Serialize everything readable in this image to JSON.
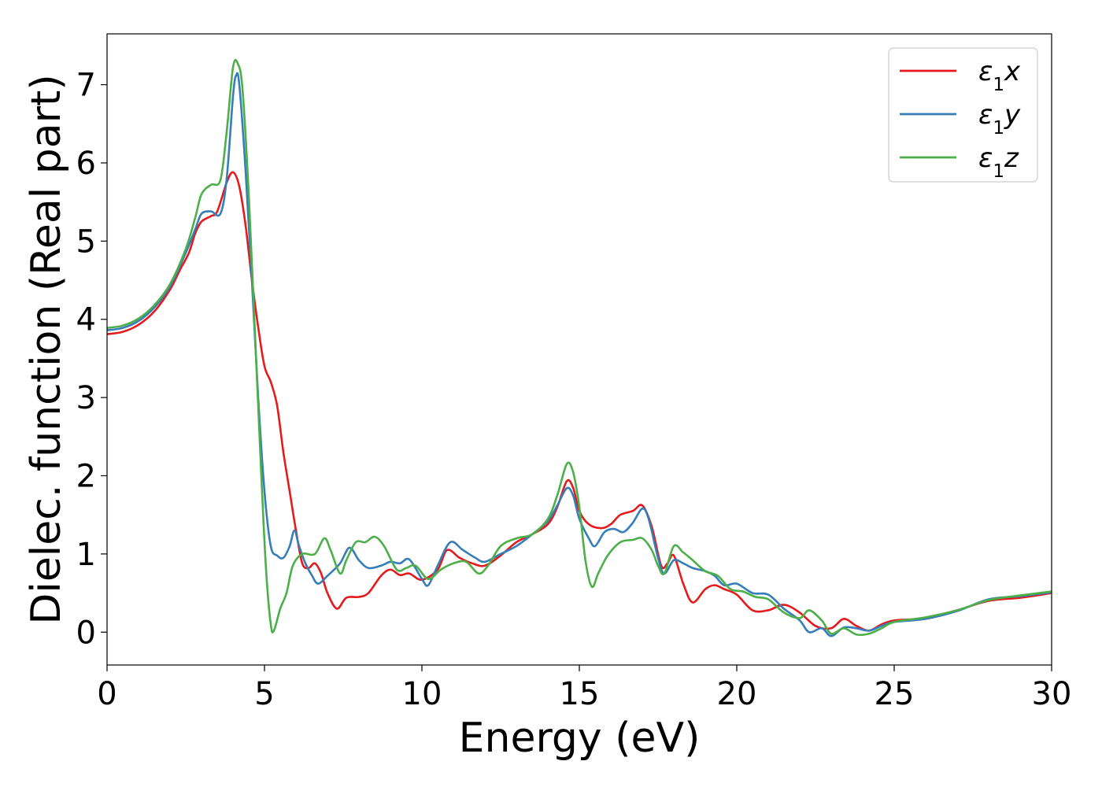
{
  "colors": {
    "background": "#ffffff",
    "axis": "#000000",
    "legend_border": "#cccccc"
  },
  "chart_data": {
    "type": "line",
    "title": "",
    "xlabel": "Energy (eV)",
    "ylabel": "Dielec. function (Real part)",
    "xlim": [
      0,
      30
    ],
    "ylim": [
      -0.42,
      7.65
    ],
    "x_ticks": [
      0,
      5,
      10,
      15,
      20,
      25,
      30
    ],
    "y_ticks": [
      0,
      1,
      2,
      3,
      4,
      5,
      6,
      7
    ],
    "grid": false,
    "legend": {
      "position": "top-right",
      "entries": [
        {
          "base": "ε",
          "sub": "1",
          "suffix": "x",
          "color": "#e41a1c"
        },
        {
          "base": "ε",
          "sub": "1",
          "suffix": "y",
          "color": "#377eb8"
        },
        {
          "base": "ε",
          "sub": "1",
          "suffix": "z",
          "color": "#4daf4a"
        }
      ]
    },
    "series": [
      {
        "name": "ε1x",
        "color": "#e41a1c",
        "points": [
          [
            0,
            3.81
          ],
          [
            0.5,
            3.84
          ],
          [
            1.0,
            3.93
          ],
          [
            1.5,
            4.1
          ],
          [
            2.0,
            4.38
          ],
          [
            2.3,
            4.62
          ],
          [
            2.6,
            4.85
          ],
          [
            2.8,
            5.1
          ],
          [
            3.0,
            5.25
          ],
          [
            3.3,
            5.32
          ],
          [
            3.5,
            5.38
          ],
          [
            3.8,
            5.75
          ],
          [
            4.0,
            5.88
          ],
          [
            4.2,
            5.7
          ],
          [
            4.4,
            5.2
          ],
          [
            4.6,
            4.5
          ],
          [
            4.8,
            3.9
          ],
          [
            5.0,
            3.4
          ],
          [
            5.2,
            3.2
          ],
          [
            5.4,
            2.9
          ],
          [
            5.6,
            2.3
          ],
          [
            5.8,
            1.8
          ],
          [
            6.0,
            1.3
          ],
          [
            6.2,
            0.88
          ],
          [
            6.4,
            0.82
          ],
          [
            6.6,
            0.88
          ],
          [
            6.8,
            0.75
          ],
          [
            7.0,
            0.5
          ],
          [
            7.3,
            0.3
          ],
          [
            7.6,
            0.44
          ],
          [
            8.0,
            0.45
          ],
          [
            8.3,
            0.5
          ],
          [
            8.7,
            0.72
          ],
          [
            9.0,
            0.8
          ],
          [
            9.3,
            0.73
          ],
          [
            9.6,
            0.75
          ],
          [
            10.0,
            0.67
          ],
          [
            10.5,
            0.8
          ],
          [
            10.8,
            1.05
          ],
          [
            11.2,
            0.95
          ],
          [
            11.6,
            0.88
          ],
          [
            12.0,
            0.85
          ],
          [
            12.5,
            0.98
          ],
          [
            13.0,
            1.15
          ],
          [
            13.5,
            1.25
          ],
          [
            14.0,
            1.38
          ],
          [
            14.3,
            1.6
          ],
          [
            14.6,
            1.93
          ],
          [
            14.8,
            1.85
          ],
          [
            15.0,
            1.55
          ],
          [
            15.3,
            1.38
          ],
          [
            15.7,
            1.33
          ],
          [
            16.0,
            1.38
          ],
          [
            16.3,
            1.5
          ],
          [
            16.7,
            1.55
          ],
          [
            17.0,
            1.62
          ],
          [
            17.3,
            1.35
          ],
          [
            17.6,
            0.85
          ],
          [
            17.8,
            0.88
          ],
          [
            18.0,
            0.98
          ],
          [
            18.3,
            0.62
          ],
          [
            18.6,
            0.38
          ],
          [
            19.0,
            0.55
          ],
          [
            19.3,
            0.6
          ],
          [
            19.6,
            0.55
          ],
          [
            20.0,
            0.48
          ],
          [
            20.5,
            0.28
          ],
          [
            21.0,
            0.28
          ],
          [
            21.5,
            0.35
          ],
          [
            22.0,
            0.25
          ],
          [
            22.5,
            0.08
          ],
          [
            23.0,
            0.05
          ],
          [
            23.4,
            0.17
          ],
          [
            23.8,
            0.08
          ],
          [
            24.2,
            0.02
          ],
          [
            24.6,
            0.1
          ],
          [
            25.0,
            0.15
          ],
          [
            26.0,
            0.18
          ],
          [
            27.0,
            0.28
          ],
          [
            28.0,
            0.4
          ],
          [
            29.0,
            0.44
          ],
          [
            30.0,
            0.5
          ]
        ]
      },
      {
        "name": "ε1y",
        "color": "#377eb8",
        "points": [
          [
            0,
            3.86
          ],
          [
            0.5,
            3.89
          ],
          [
            1.0,
            3.98
          ],
          [
            1.5,
            4.15
          ],
          [
            2.0,
            4.42
          ],
          [
            2.5,
            4.85
          ],
          [
            2.8,
            5.15
          ],
          [
            3.0,
            5.35
          ],
          [
            3.3,
            5.38
          ],
          [
            3.6,
            5.35
          ],
          [
            3.8,
            5.8
          ],
          [
            4.0,
            6.85
          ],
          [
            4.1,
            7.12
          ],
          [
            4.2,
            7.0
          ],
          [
            4.4,
            5.9
          ],
          [
            4.6,
            4.5
          ],
          [
            4.8,
            3.0
          ],
          [
            5.0,
            1.8
          ],
          [
            5.2,
            1.1
          ],
          [
            5.4,
            0.98
          ],
          [
            5.6,
            0.95
          ],
          [
            5.8,
            1.1
          ],
          [
            5.95,
            1.3
          ],
          [
            6.1,
            1.1
          ],
          [
            6.3,
            0.88
          ],
          [
            6.5,
            0.73
          ],
          [
            6.7,
            0.62
          ],
          [
            7.0,
            0.72
          ],
          [
            7.4,
            0.88
          ],
          [
            7.7,
            1.08
          ],
          [
            8.0,
            0.92
          ],
          [
            8.3,
            0.82
          ],
          [
            8.7,
            0.85
          ],
          [
            9.0,
            0.9
          ],
          [
            9.3,
            0.88
          ],
          [
            9.6,
            0.93
          ],
          [
            10.0,
            0.68
          ],
          [
            10.2,
            0.6
          ],
          [
            10.5,
            0.85
          ],
          [
            10.9,
            1.15
          ],
          [
            11.3,
            1.05
          ],
          [
            11.7,
            0.95
          ],
          [
            12.0,
            0.9
          ],
          [
            12.5,
            1.0
          ],
          [
            13.0,
            1.1
          ],
          [
            13.5,
            1.25
          ],
          [
            14.0,
            1.42
          ],
          [
            14.3,
            1.62
          ],
          [
            14.6,
            1.84
          ],
          [
            14.8,
            1.75
          ],
          [
            15.0,
            1.45
          ],
          [
            15.3,
            1.2
          ],
          [
            15.5,
            1.1
          ],
          [
            15.8,
            1.28
          ],
          [
            16.1,
            1.32
          ],
          [
            16.4,
            1.28
          ],
          [
            16.7,
            1.4
          ],
          [
            17.0,
            1.58
          ],
          [
            17.2,
            1.45
          ],
          [
            17.5,
            0.95
          ],
          [
            17.7,
            0.75
          ],
          [
            18.0,
            0.92
          ],
          [
            18.3,
            0.88
          ],
          [
            18.6,
            0.82
          ],
          [
            19.0,
            0.78
          ],
          [
            19.3,
            0.72
          ],
          [
            19.6,
            0.6
          ],
          [
            20.0,
            0.62
          ],
          [
            20.5,
            0.5
          ],
          [
            21.0,
            0.48
          ],
          [
            21.5,
            0.3
          ],
          [
            22.0,
            0.15
          ],
          [
            22.3,
            0.0
          ],
          [
            22.7,
            0.05
          ],
          [
            23.0,
            -0.05
          ],
          [
            23.4,
            0.06
          ],
          [
            23.8,
            0.05
          ],
          [
            24.2,
            0.02
          ],
          [
            24.6,
            0.08
          ],
          [
            25.0,
            0.13
          ],
          [
            26.0,
            0.17
          ],
          [
            27.0,
            0.27
          ],
          [
            28.0,
            0.42
          ],
          [
            29.0,
            0.46
          ],
          [
            30.0,
            0.51
          ]
        ]
      },
      {
        "name": "ε1z",
        "color": "#4daf4a",
        "points": [
          [
            0,
            3.89
          ],
          [
            0.5,
            3.92
          ],
          [
            1.0,
            4.01
          ],
          [
            1.5,
            4.18
          ],
          [
            2.0,
            4.45
          ],
          [
            2.5,
            4.9
          ],
          [
            2.8,
            5.3
          ],
          [
            3.0,
            5.6
          ],
          [
            3.3,
            5.72
          ],
          [
            3.6,
            5.78
          ],
          [
            3.8,
            6.4
          ],
          [
            4.0,
            7.22
          ],
          [
            4.15,
            7.27
          ],
          [
            4.3,
            6.95
          ],
          [
            4.5,
            5.6
          ],
          [
            4.7,
            3.8
          ],
          [
            4.9,
            2.0
          ],
          [
            5.05,
            0.8
          ],
          [
            5.2,
            0.1
          ],
          [
            5.3,
            0.02
          ],
          [
            5.5,
            0.3
          ],
          [
            5.7,
            0.5
          ],
          [
            5.9,
            0.85
          ],
          [
            6.2,
            1.0
          ],
          [
            6.6,
            1.0
          ],
          [
            6.9,
            1.2
          ],
          [
            7.1,
            1.05
          ],
          [
            7.4,
            0.75
          ],
          [
            7.6,
            0.92
          ],
          [
            7.9,
            1.15
          ],
          [
            8.2,
            1.15
          ],
          [
            8.5,
            1.22
          ],
          [
            8.8,
            1.1
          ],
          [
            9.2,
            0.8
          ],
          [
            9.5,
            0.82
          ],
          [
            9.8,
            0.85
          ],
          [
            10.2,
            0.68
          ],
          [
            10.6,
            0.8
          ],
          [
            11.0,
            0.88
          ],
          [
            11.4,
            0.9
          ],
          [
            11.8,
            0.75
          ],
          [
            12.1,
            0.85
          ],
          [
            12.5,
            1.1
          ],
          [
            13.0,
            1.2
          ],
          [
            13.5,
            1.25
          ],
          [
            14.0,
            1.45
          ],
          [
            14.3,
            1.75
          ],
          [
            14.6,
            2.15
          ],
          [
            14.8,
            2.05
          ],
          [
            15.0,
            1.6
          ],
          [
            15.2,
            0.9
          ],
          [
            15.4,
            0.58
          ],
          [
            15.6,
            0.75
          ],
          [
            15.9,
            0.98
          ],
          [
            16.3,
            1.15
          ],
          [
            16.7,
            1.18
          ],
          [
            17.0,
            1.2
          ],
          [
            17.3,
            1.05
          ],
          [
            17.5,
            0.85
          ],
          [
            17.7,
            0.75
          ],
          [
            18.0,
            1.1
          ],
          [
            18.3,
            1.02
          ],
          [
            18.6,
            0.92
          ],
          [
            19.0,
            0.78
          ],
          [
            19.4,
            0.72
          ],
          [
            19.8,
            0.55
          ],
          [
            20.2,
            0.52
          ],
          [
            20.6,
            0.45
          ],
          [
            21.0,
            0.42
          ],
          [
            21.5,
            0.25
          ],
          [
            22.0,
            0.18
          ],
          [
            22.3,
            0.28
          ],
          [
            22.7,
            0.15
          ],
          [
            23.0,
            -0.02
          ],
          [
            23.4,
            0.05
          ],
          [
            23.8,
            -0.03
          ],
          [
            24.2,
            -0.02
          ],
          [
            24.6,
            0.05
          ],
          [
            25.0,
            0.13
          ],
          [
            26.0,
            0.19
          ],
          [
            27.0,
            0.28
          ],
          [
            28.0,
            0.41
          ],
          [
            29.0,
            0.47
          ],
          [
            30.0,
            0.52
          ]
        ]
      }
    ]
  }
}
